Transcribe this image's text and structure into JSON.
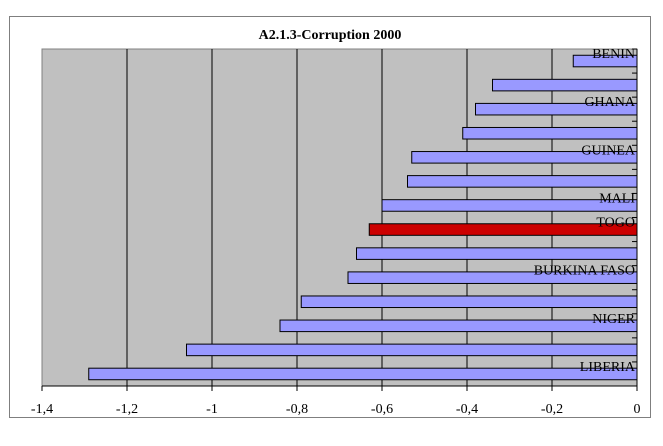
{
  "chart_data": {
    "type": "bar",
    "orientation": "horizontal",
    "title": "A2.1.3-Corruption 2000",
    "xlim": [
      -1.4,
      0
    ],
    "x_ticks": [
      -1.4,
      -1.2,
      -1,
      -0.8,
      -0.6,
      -0.4,
      -0.2,
      0
    ],
    "x_tick_labels": [
      "-1,4",
      "-1,2",
      "-1",
      "-0,8",
      "-0,6",
      "-0,4",
      "-0,2",
      "0"
    ],
    "grid": "vertical",
    "category_labels": [
      "BENIN",
      "GHANA",
      "GUINEA",
      "MALI",
      "TOGO",
      "BURKINA FASO",
      "NIGER",
      "LIBERIA"
    ],
    "series": [
      {
        "values": [
          -0.15,
          -0.34,
          -0.38,
          -0.41,
          -0.53,
          -0.54,
          -0.6,
          -0.63,
          -0.66,
          -0.68,
          -0.79,
          -0.84,
          -1.06,
          -1.29
        ]
      }
    ],
    "labeled_bar_positions": [
      0,
      2,
      4,
      6,
      7,
      9,
      11,
      13
    ],
    "highlighted_bar": 7
  },
  "colors": {
    "plot_background": "#c0c0c0",
    "bar_fill": "#9999ff",
    "highlight_fill": "#cc0000",
    "bar_stroke": "#000000",
    "grid": "#000000"
  }
}
